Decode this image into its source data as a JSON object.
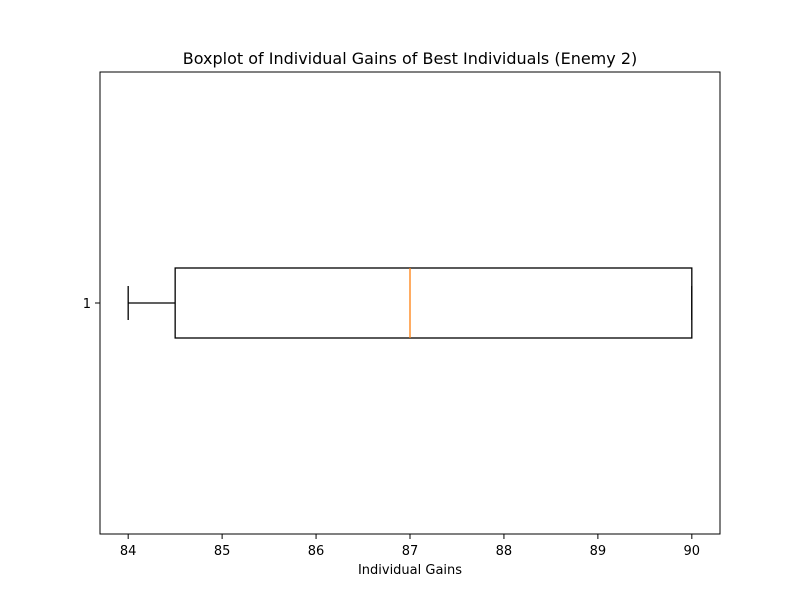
{
  "colors": {
    "box": "#000000",
    "median": "#ff7f0e",
    "background": "#ffffff"
  },
  "chart_data": {
    "type": "boxplot",
    "orientation": "horizontal",
    "title": "Boxplot of Individual Gains of Best Individuals (Enemy 2)",
    "xlabel": "Individual Gains",
    "ylabel": "",
    "xlim": [
      83.7,
      90.3
    ],
    "xticks": [
      84,
      85,
      86,
      87,
      88,
      89,
      90
    ],
    "yticks": [
      "1"
    ],
    "grid": false,
    "legend": "none",
    "boxes": [
      {
        "label": "1",
        "whisker_low": 84,
        "q1": 84.5,
        "median": 87,
        "q3": 90,
        "whisker_high": 90
      }
    ]
  }
}
